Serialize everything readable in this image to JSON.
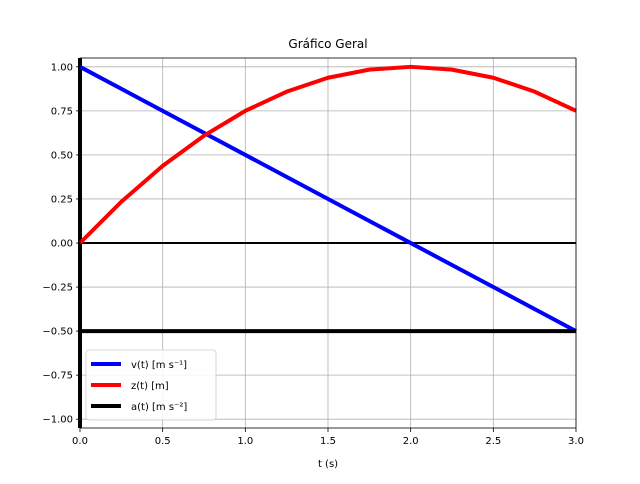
{
  "chart_data": {
    "type": "line",
    "title": "Gráfico Geral",
    "xlabel": "t (s)",
    "ylabel": "",
    "xlim": [
      0.0,
      3.0
    ],
    "ylim": [
      -1.05,
      1.05
    ],
    "xticks": [
      0.0,
      0.5,
      1.0,
      1.5,
      2.0,
      2.5,
      3.0
    ],
    "xtick_labels": [
      "0.0",
      "0.5",
      "1.0",
      "1.5",
      "2.0",
      "2.5",
      "3.0"
    ],
    "yticks": [
      1.0,
      0.75,
      0.5,
      0.25,
      0.0,
      -0.25,
      -0.5,
      -0.75,
      -1.0
    ],
    "ytick_labels": [
      "1.00",
      "0.75",
      "0.50",
      "0.25",
      "0.00",
      "−0.25",
      "−0.50",
      "−0.75",
      "−1.00"
    ],
    "grid": true,
    "legend_position": "lower-left",
    "series": [
      {
        "name": "v(t) [m s⁻¹]",
        "color": "#0000ff",
        "x": [
          0.0,
          3.0
        ],
        "y": [
          1.0,
          -0.5
        ]
      },
      {
        "name": "z(t) [m]",
        "color": "#ff0000",
        "x": [
          0.0,
          0.25,
          0.5,
          0.75,
          1.0,
          1.25,
          1.5,
          1.75,
          2.0,
          2.25,
          2.5,
          2.75,
          3.0
        ],
        "y": [
          0.0,
          0.234,
          0.438,
          0.609,
          0.75,
          0.859,
          0.938,
          0.984,
          1.0,
          0.984,
          0.938,
          0.859,
          0.75
        ]
      },
      {
        "name": "a(t) [m s⁻²]",
        "color": "#000000",
        "x": [
          0.0,
          3.0
        ],
        "y": [
          -0.5,
          -0.5
        ]
      }
    ],
    "reference_lines": [
      {
        "orientation": "horizontal",
        "y": 0.0,
        "color": "#000000"
      },
      {
        "orientation": "vertical",
        "x": 0.0,
        "color": "#000000"
      }
    ]
  }
}
